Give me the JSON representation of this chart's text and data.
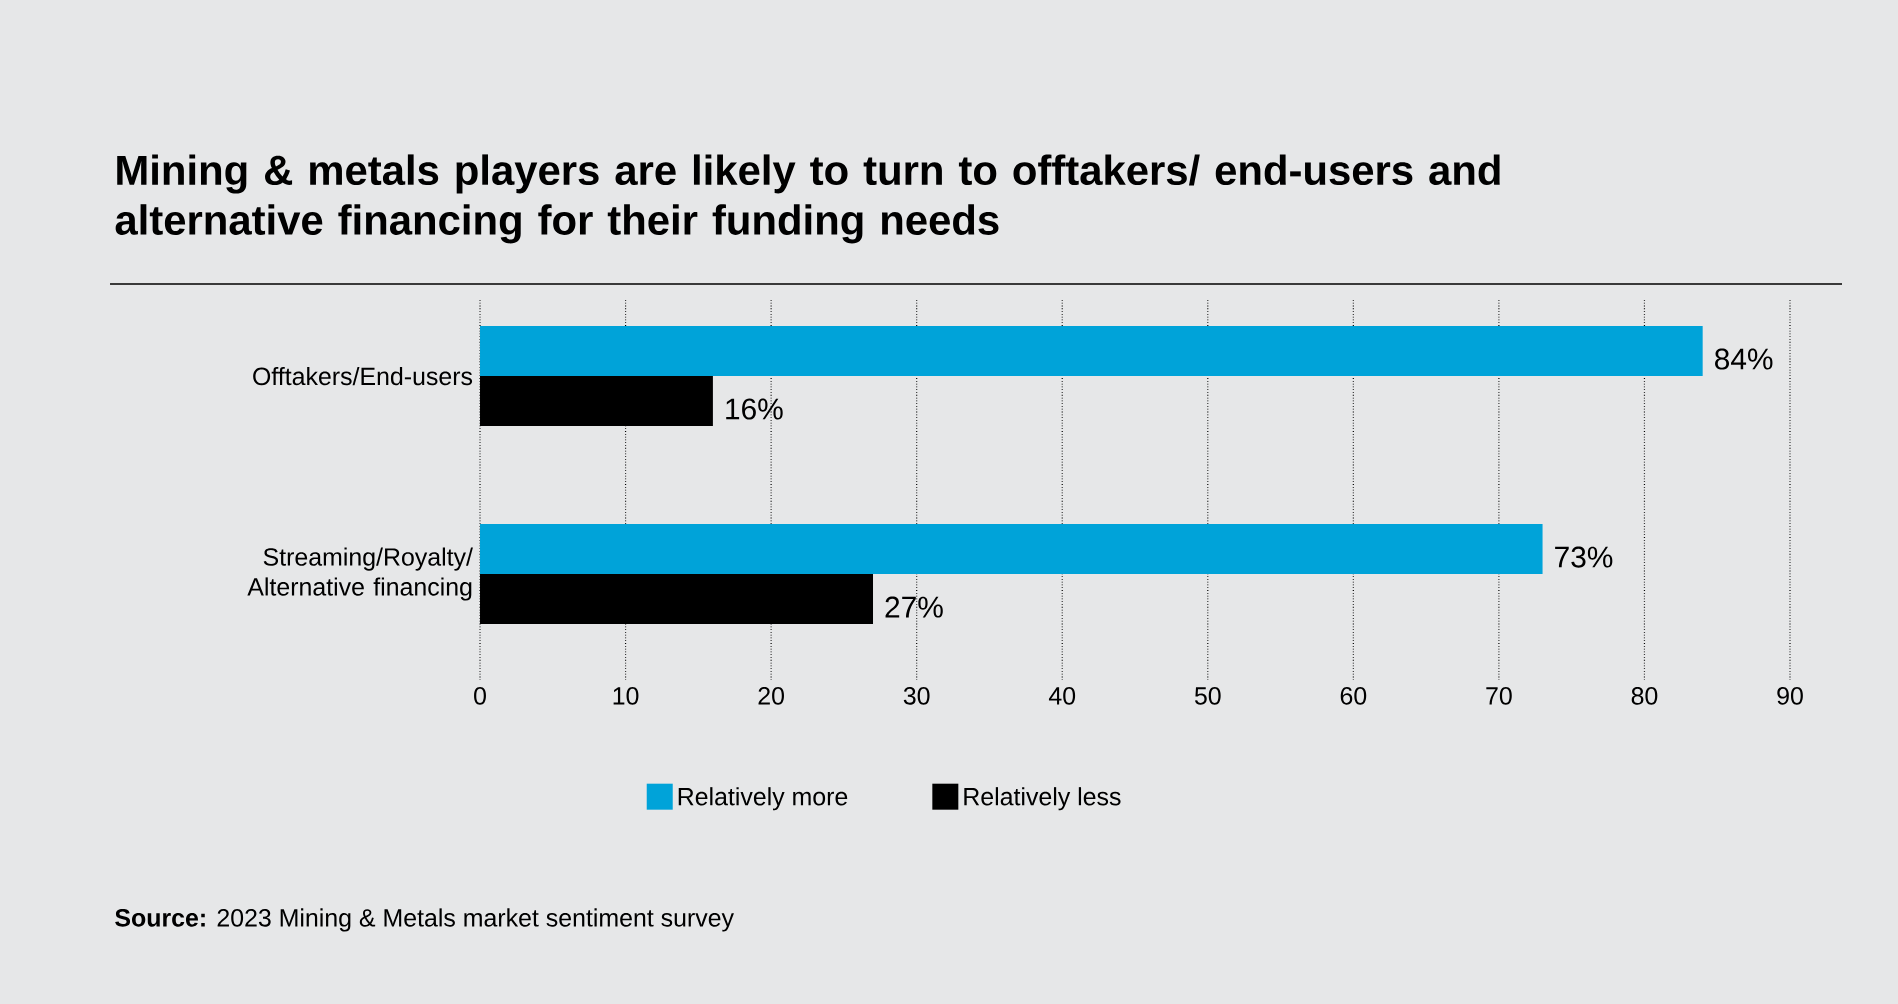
{
  "chart_data": {
    "type": "bar",
    "orientation": "horizontal",
    "title": "Mining & metals players are likely to turn to offtakers/ end-users and alternative financing for their funding needs",
    "categories": [
      "Offtakers/End-users",
      "Streaming/Royalty/ Alternative financing"
    ],
    "series": [
      {
        "name": "Relatively more",
        "color": "#00a3d9",
        "values": [
          84,
          73
        ],
        "value_labels": [
          "84%",
          "73%"
        ]
      },
      {
        "name": "Relatively less",
        "color": "#000000",
        "values": [
          16,
          27
        ],
        "value_labels": [
          "16%",
          "27%"
        ]
      }
    ],
    "xlim": [
      0,
      90
    ],
    "xticks": [
      0,
      10,
      20,
      30,
      40,
      50,
      60,
      70,
      80,
      90
    ],
    "grid": "x",
    "legend": "bottom",
    "annotations": [
      "**Source:** 2023 Mining & Metals market sentiment survey"
    ]
  }
}
